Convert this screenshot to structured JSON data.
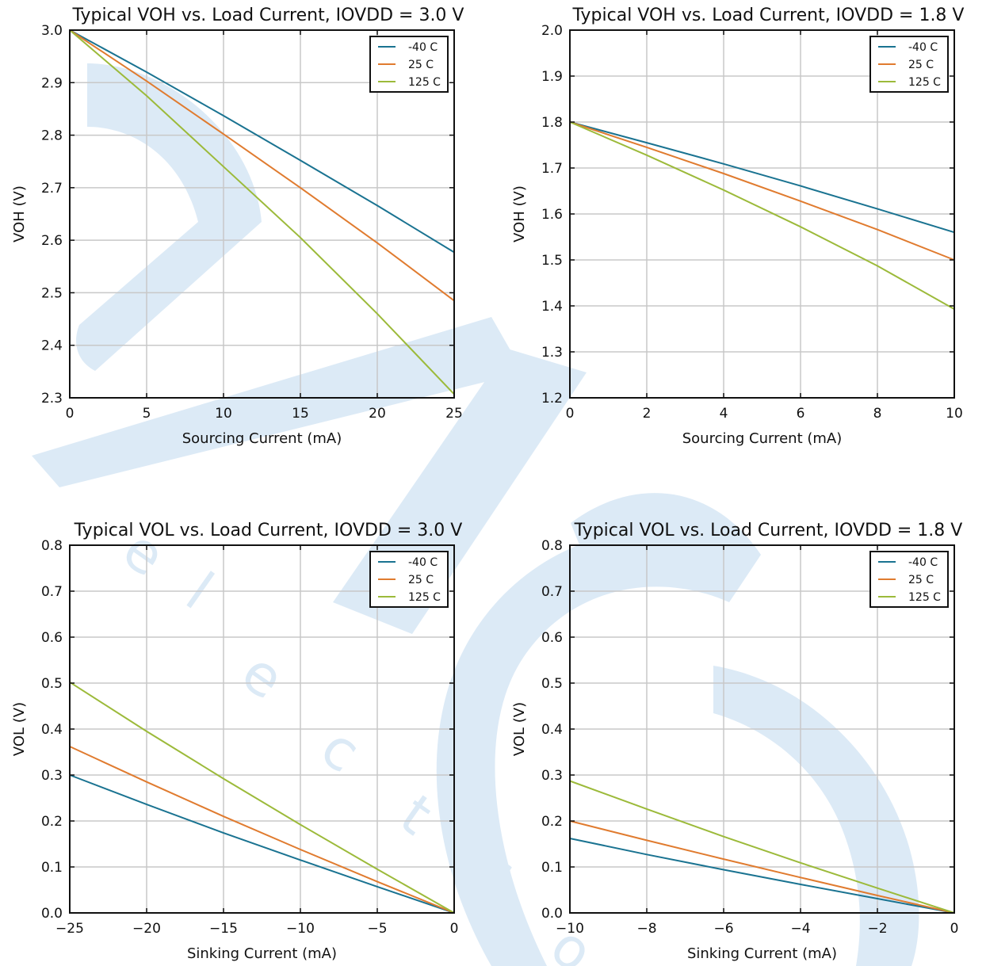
{
  "colors": {
    "series_minus40": "#1a7391",
    "series_25": "#e07b2f",
    "series_125": "#9cba3a",
    "grid": "#c8c8c8",
    "axis": "#111111",
    "watermark": "#dceaf6"
  },
  "watermark_text": [
    "e",
    "l",
    "e",
    "c",
    "t",
    "r",
    "o"
  ],
  "chart_data": [
    {
      "type": "line",
      "title": "Typical VOH vs. Load Current, IOVDD = 3.0 V",
      "xlabel": "Sourcing Current (mA)",
      "ylabel": "VOH (V)",
      "xlim": [
        0,
        25
      ],
      "ylim": [
        2.3,
        3.0
      ],
      "xticks": [
        0,
        5,
        10,
        15,
        20,
        25
      ],
      "xtick_labels": [
        "0",
        "5",
        "10",
        "15",
        "20",
        "25"
      ],
      "yticks": [
        2.3,
        2.4,
        2.5,
        2.6,
        2.7,
        2.8,
        2.9,
        3.0
      ],
      "ytick_labels": [
        "2.3",
        "2.4",
        "2.5",
        "2.6",
        "2.7",
        "2.8",
        "2.9",
        "3.0"
      ],
      "grid": true,
      "legend": "top-right",
      "x": [
        0,
        5,
        10,
        15,
        20,
        25
      ],
      "series": [
        {
          "name": "-40 C",
          "values": [
            3.0,
            2.92,
            2.837,
            2.752,
            2.666,
            2.577
          ]
        },
        {
          "name": "25 C",
          "values": [
            3.0,
            2.903,
            2.802,
            2.7,
            2.595,
            2.485
          ]
        },
        {
          "name": "125 C",
          "values": [
            3.0,
            2.875,
            2.74,
            2.605,
            2.46,
            2.307
          ]
        }
      ]
    },
    {
      "type": "line",
      "title": "Typical VOH vs. Load Current, IOVDD = 1.8 V",
      "xlabel": "Sourcing Current (mA)",
      "ylabel": "VOH (V)",
      "xlim": [
        0,
        10
      ],
      "ylim": [
        1.2,
        2.0
      ],
      "xticks": [
        0,
        2,
        4,
        6,
        8,
        10
      ],
      "xtick_labels": [
        "0",
        "2",
        "4",
        "6",
        "8",
        "10"
      ],
      "yticks": [
        1.2,
        1.3,
        1.4,
        1.5,
        1.6,
        1.7,
        1.8,
        1.9,
        2.0
      ],
      "ytick_labels": [
        "1.2",
        "1.3",
        "1.4",
        "1.5",
        "1.6",
        "1.7",
        "1.8",
        "1.9",
        "2.0"
      ],
      "grid": true,
      "legend": "top-right",
      "x": [
        0,
        2,
        4,
        6,
        8,
        10
      ],
      "series": [
        {
          "name": "-40 C",
          "values": [
            1.8,
            1.755,
            1.709,
            1.661,
            1.611,
            1.56
          ]
        },
        {
          "name": "25 C",
          "values": [
            1.8,
            1.745,
            1.688,
            1.628,
            1.566,
            1.5
          ]
        },
        {
          "name": "125 C",
          "values": [
            1.8,
            1.728,
            1.652,
            1.572,
            1.487,
            1.393
          ]
        }
      ]
    },
    {
      "type": "line",
      "title": "Typical VOL vs. Load Current, IOVDD = 3.0 V",
      "xlabel": "Sinking Current (mA)",
      "ylabel": "VOL (V)",
      "xlim": [
        -25,
        0
      ],
      "ylim": [
        0.0,
        0.8
      ],
      "xticks": [
        -25,
        -20,
        -15,
        -10,
        -5,
        0
      ],
      "xtick_labels": [
        "−25",
        "−20",
        "−15",
        "−10",
        "−5",
        "0"
      ],
      "yticks": [
        0.0,
        0.1,
        0.2,
        0.3,
        0.4,
        0.5,
        0.6,
        0.7,
        0.8
      ],
      "ytick_labels": [
        "0.0",
        "0.1",
        "0.2",
        "0.3",
        "0.4",
        "0.5",
        "0.6",
        "0.7",
        "0.8"
      ],
      "grid": true,
      "legend": "top-right",
      "x": [
        -25,
        -20,
        -15,
        -10,
        -5,
        0
      ],
      "series": [
        {
          "name": "-40 C",
          "values": [
            0.3,
            0.236,
            0.174,
            0.115,
            0.057,
            0.0
          ]
        },
        {
          "name": "25 C",
          "values": [
            0.362,
            0.285,
            0.21,
            0.138,
            0.068,
            0.0
          ]
        },
        {
          "name": "125 C",
          "values": [
            0.502,
            0.395,
            0.292,
            0.192,
            0.095,
            0.0
          ]
        }
      ]
    },
    {
      "type": "line",
      "title": "Typical VOL vs. Load Current, IOVDD = 1.8 V",
      "xlabel": "Sinking Current (mA)",
      "ylabel": "VOL (V)",
      "xlim": [
        -10,
        0
      ],
      "ylim": [
        0.0,
        0.8
      ],
      "xticks": [
        -10,
        -8,
        -6,
        -4,
        -2,
        0
      ],
      "xtick_labels": [
        "−10",
        "−8",
        "−6",
        "−4",
        "−2",
        "0"
      ],
      "yticks": [
        0.0,
        0.1,
        0.2,
        0.3,
        0.4,
        0.5,
        0.6,
        0.7,
        0.8
      ],
      "ytick_labels": [
        "0.0",
        "0.1",
        "0.2",
        "0.3",
        "0.4",
        "0.5",
        "0.6",
        "0.7",
        "0.8"
      ],
      "grid": true,
      "legend": "top-right",
      "x": [
        -10,
        -8,
        -6,
        -4,
        -2,
        0
      ],
      "series": [
        {
          "name": "-40 C",
          "values": [
            0.162,
            0.127,
            0.094,
            0.062,
            0.031,
            0.0
          ]
        },
        {
          "name": "25 C",
          "values": [
            0.2,
            0.158,
            0.117,
            0.077,
            0.038,
            0.0
          ]
        },
        {
          "name": "125 C",
          "values": [
            0.287,
            0.226,
            0.166,
            0.109,
            0.054,
            0.0
          ]
        }
      ]
    }
  ]
}
